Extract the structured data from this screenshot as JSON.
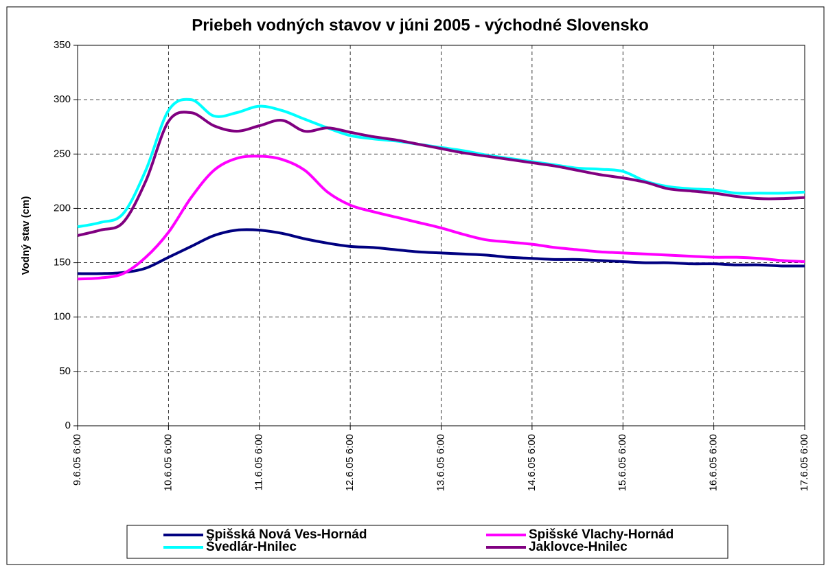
{
  "chart_data": {
    "type": "line",
    "title": "Priebeh vodných stavov v júni 2005 - východné Slovensko",
    "y_label": "Vodný stav (cm)",
    "categories": [
      "9.6.05 6:00",
      null,
      null,
      null,
      "10.6.05 6:00",
      null,
      null,
      null,
      "11.6.05 6:00",
      null,
      null,
      null,
      "12.6.05 6:00",
      null,
      null,
      null,
      "13.6.05 6:00",
      null,
      null,
      null,
      "14.6.05 6:00",
      null,
      null,
      null,
      "15.6.05 6:00",
      null,
      null,
      null,
      "16.6.05 6:00",
      null,
      null,
      null,
      "17.6.05 6:00"
    ],
    "series": [
      {
        "name": "Spišská Nová Ves-Hornád",
        "color": "#000080",
        "values": [
          140,
          140,
          141,
          145,
          155,
          165,
          175,
          180,
          180,
          177,
          172,
          168,
          165,
          164,
          162,
          160,
          159,
          158,
          157,
          155,
          154,
          153,
          153,
          152,
          151,
          150,
          150,
          149,
          149,
          148,
          148,
          147,
          147
        ]
      },
      {
        "name": "Spišské Vlachy-Hornád",
        "color": "#ff00ff",
        "values": [
          135,
          136,
          140,
          155,
          178,
          210,
          235,
          246,
          248,
          245,
          235,
          215,
          203,
          197,
          192,
          187,
          182,
          176,
          171,
          169,
          167,
          164,
          162,
          160,
          159,
          158,
          157,
          156,
          155,
          155,
          154,
          152,
          151
        ]
      },
      {
        "name": "Švedlár-Hnilec",
        "color": "#00ffff",
        "values": [
          183,
          187,
          195,
          235,
          290,
          300,
          285,
          288,
          294,
          290,
          282,
          274,
          267,
          264,
          262,
          259,
          256,
          253,
          249,
          246,
          243,
          240,
          237,
          236,
          234,
          225,
          220,
          218,
          217,
          214,
          214,
          214,
          215
        ]
      },
      {
        "name": "Jaklovce-Hnilec",
        "color": "#800080",
        "values": [
          175,
          180,
          187,
          225,
          280,
          288,
          276,
          271,
          276,
          281,
          271,
          274,
          270,
          266,
          263,
          259,
          255,
          251,
          248,
          245,
          242,
          239,
          235,
          231,
          228,
          224,
          218,
          216,
          214,
          211,
          209,
          209,
          210
        ]
      }
    ],
    "ylim": [
      0,
      350
    ],
    "yticks": [
      0,
      50,
      100,
      150,
      200,
      250,
      300,
      350
    ],
    "grid": true,
    "legend": "bottom"
  }
}
